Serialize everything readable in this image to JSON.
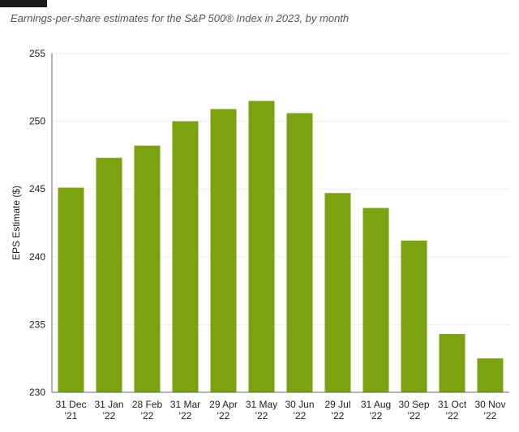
{
  "subtitle": "Earnings-per-share estimates for the S&P 500® Index in 2023, by month",
  "colors": {
    "bar": "#7aa30f",
    "gridline": "#eeeeee",
    "axis": "#666666"
  },
  "chart_data": {
    "type": "bar",
    "title": "",
    "subtitle": "Earnings-per-share estimates for the S&P 500® Index in 2023, by month",
    "xlabel": "",
    "ylabel": "EPS Estimate ($)",
    "ylim": [
      230,
      255
    ],
    "yticks": [
      230,
      235,
      240,
      245,
      250,
      255
    ],
    "grid": true,
    "categories": [
      [
        "31 Dec",
        "'21"
      ],
      [
        "31 Jan",
        "'22"
      ],
      [
        "28 Feb",
        "'22"
      ],
      [
        "31 Mar",
        "'22"
      ],
      [
        "29 Apr",
        "'22"
      ],
      [
        "31 May",
        "'22"
      ],
      [
        "30 Jun",
        "'22"
      ],
      [
        "29 Jul",
        "'22"
      ],
      [
        "31 Aug",
        "'22"
      ],
      [
        "30 Sep",
        "'22"
      ],
      [
        "31 Oct",
        "'22"
      ],
      [
        "30 Nov",
        "'22"
      ]
    ],
    "values": [
      245.1,
      247.3,
      248.2,
      250.0,
      250.9,
      251.5,
      250.6,
      244.7,
      243.6,
      241.2,
      234.3,
      232.5
    ]
  }
}
